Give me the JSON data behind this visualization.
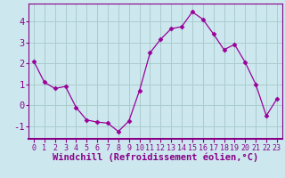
{
  "x": [
    0,
    1,
    2,
    3,
    4,
    5,
    6,
    7,
    8,
    9,
    10,
    11,
    12,
    13,
    14,
    15,
    16,
    17,
    18,
    19,
    20,
    21,
    22,
    23
  ],
  "y": [
    2.1,
    1.1,
    0.8,
    0.9,
    -0.1,
    -0.7,
    -0.8,
    -0.85,
    -1.25,
    -0.75,
    0.7,
    2.5,
    3.15,
    3.65,
    3.75,
    4.45,
    4.1,
    3.4,
    2.65,
    2.9,
    2.05,
    1.0,
    -0.5,
    0.3
  ],
  "line_color": "#990099",
  "marker": "D",
  "marker_size": 2.5,
  "bg_color": "#cce8ee",
  "grid_color": "#aacccc",
  "xlim": [
    -0.5,
    23.5
  ],
  "ylim": [
    -1.6,
    4.85
  ],
  "yticks": [
    -1,
    0,
    1,
    2,
    3,
    4
  ],
  "xticks": [
    0,
    1,
    2,
    3,
    4,
    5,
    6,
    7,
    8,
    9,
    10,
    11,
    12,
    13,
    14,
    15,
    16,
    17,
    18,
    19,
    20,
    21,
    22,
    23
  ],
  "tick_color": "#880088",
  "label_color": "#880088",
  "spine_color": "#880088",
  "xlabel": "Windchill (Refroidissement éolien,°C)",
  "xlabel_fontsize": 7.5,
  "tick_fontsize": 6.0,
  "ytick_fontsize": 7.5
}
